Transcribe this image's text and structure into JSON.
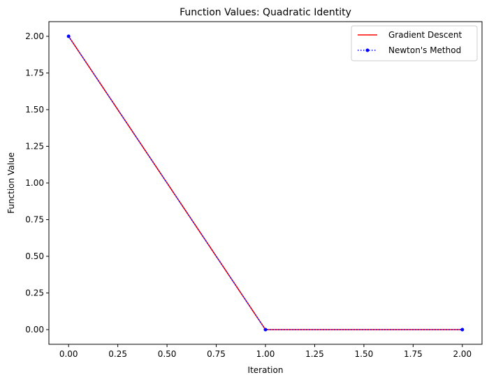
{
  "chart_data": {
    "type": "line",
    "title": "Function Values: Quadratic Identity",
    "xlabel": "Iteration",
    "ylabel": "Function Value",
    "xlim": [
      -0.1,
      2.1
    ],
    "ylim": [
      -0.1,
      2.1
    ],
    "x_ticks": [
      0.0,
      0.25,
      0.5,
      0.75,
      1.0,
      1.25,
      1.5,
      1.75,
      2.0
    ],
    "y_ticks": [
      0.0,
      0.25,
      0.5,
      0.75,
      1.0,
      1.25,
      1.5,
      1.75,
      2.0
    ],
    "x_tick_labels": [
      "0.00",
      "0.25",
      "0.50",
      "0.75",
      "1.00",
      "1.25",
      "1.50",
      "1.75",
      "2.00"
    ],
    "y_tick_labels": [
      "0.00",
      "0.25",
      "0.50",
      "0.75",
      "1.00",
      "1.25",
      "1.50",
      "1.75",
      "2.00"
    ],
    "grid": false,
    "legend_position": "top-right",
    "series": [
      {
        "name": "Gradient Descent",
        "x": [
          0,
          1,
          2
        ],
        "y": [
          2.0,
          0.0,
          0.0
        ],
        "color": "#ff0000",
        "line_style": "solid",
        "marker": "none"
      },
      {
        "name": "Newton's Method",
        "x": [
          0,
          1,
          2
        ],
        "y": [
          2.0,
          0.0,
          0.0
        ],
        "color": "#0000ff",
        "line_style": "dotted",
        "marker": "circle"
      }
    ]
  }
}
